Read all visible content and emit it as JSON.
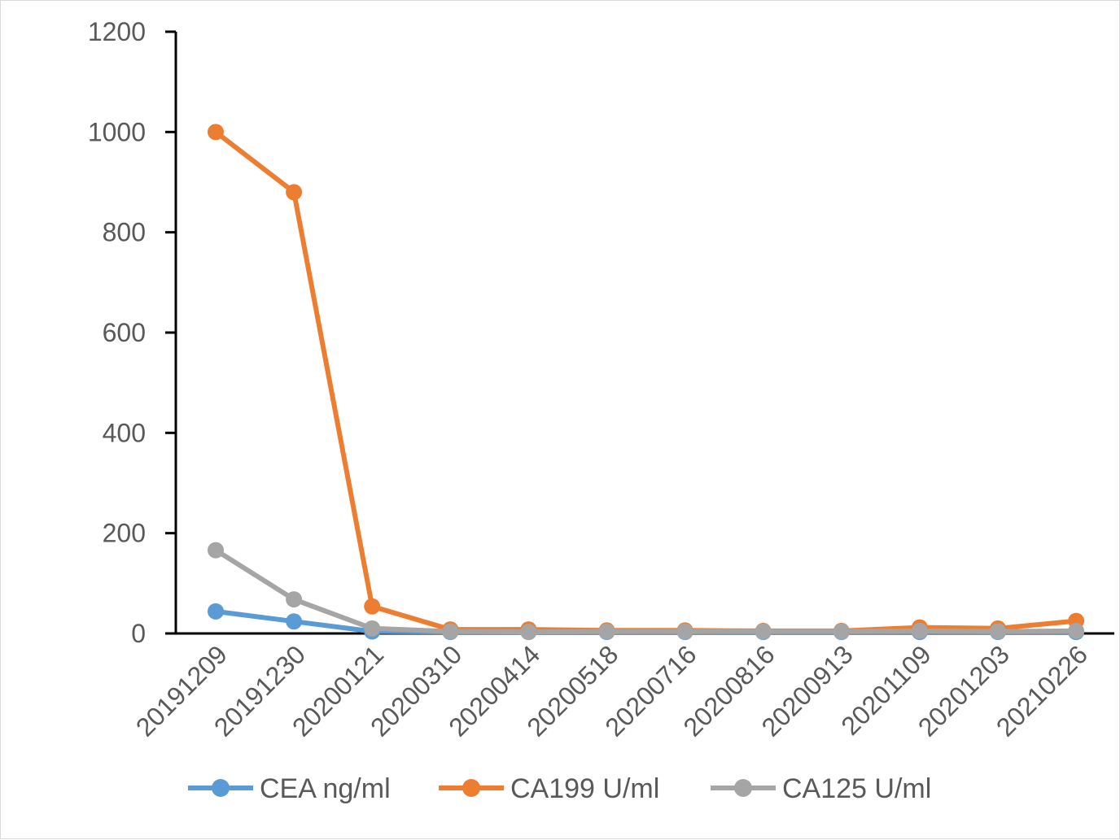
{
  "chart_data": {
    "type": "line",
    "title": "",
    "xlabel": "",
    "ylabel": "",
    "ylim": [
      0,
      1200
    ],
    "y_ticks": [
      "0",
      "200",
      "400",
      "600",
      "800",
      "1000",
      "1200"
    ],
    "y_tick_values": [
      0,
      200,
      400,
      600,
      800,
      1000,
      1200
    ],
    "grid": false,
    "legend_position": "bottom",
    "categories": [
      "20191209",
      "20191230",
      "20200121",
      "20200310",
      "20200414",
      "20200518",
      "20200716",
      "20200816",
      "20200913",
      "20201109",
      "20201203",
      "20210226"
    ],
    "series": [
      {
        "name": "CEA ng/ml",
        "color": "#5b9bd5",
        "values": [
          44,
          24,
          4,
          3,
          3,
          3,
          3,
          3,
          3,
          3,
          3,
          3
        ]
      },
      {
        "name": "CA199 U/ml",
        "color": "#ed7d31",
        "values": [
          1000,
          880,
          54,
          8,
          8,
          6,
          6,
          5,
          5,
          12,
          10,
          25
        ]
      },
      {
        "name": "CA125 U/ml",
        "color": "#a5a5a5",
        "values": [
          166,
          68,
          10,
          4,
          3,
          4,
          4,
          4,
          4,
          5,
          4,
          5
        ]
      }
    ]
  }
}
